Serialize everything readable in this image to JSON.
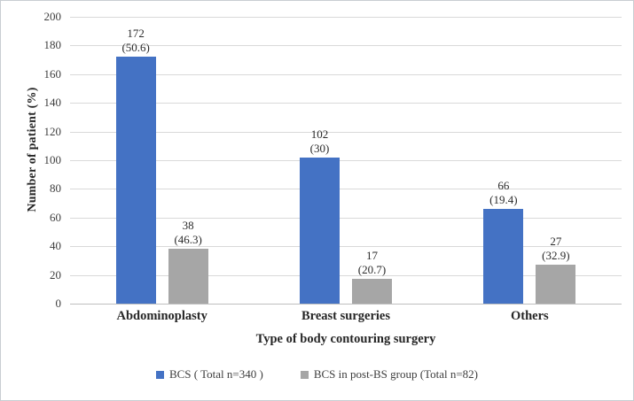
{
  "figure": {
    "background": "#ffffff",
    "border_color": "#c9cdd2",
    "grid_color": "#d9d9d9",
    "axis_line_color": "#bfbfbf",
    "text_color": "#262626"
  },
  "chart_data": {
    "type": "bar",
    "title": "",
    "categories": [
      "Abdominoplasty",
      "Breast surgeries",
      "Others"
    ],
    "series": [
      {
        "name": "BCS ( Total n=340 )",
        "color": "#4472C4",
        "values": [
          172,
          102,
          66
        ],
        "percent_labels": [
          "(50.6)",
          "(30)",
          "(19.4)"
        ]
      },
      {
        "name": "BCS in post-BS group (Total n=82)",
        "color": "#A6A6A6",
        "values": [
          38,
          17,
          27
        ],
        "percent_labels": [
          "(46.3)",
          "(20.7)",
          "(32.9)"
        ]
      }
    ],
    "xlabel": "Type of body contouring surgery",
    "ylabel": "Number of patient (%)",
    "ylim": [
      0,
      200
    ],
    "ytick_step": 20,
    "grid": true,
    "legend_position": "bottom"
  }
}
